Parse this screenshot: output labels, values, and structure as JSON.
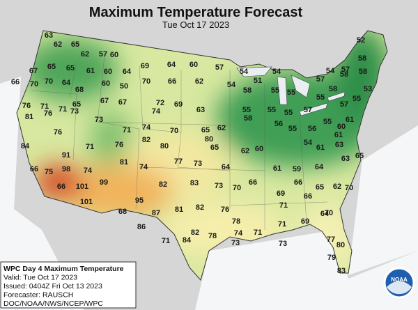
{
  "header": {
    "title": "Maximum Temperature Forecast",
    "subtitle": "Tue Oct 17 2023"
  },
  "labels": [
    63,
    62,
    65,
    62,
    57,
    60,
    52,
    67,
    65,
    65,
    61,
    60,
    64,
    69,
    64,
    60,
    57,
    54,
    54,
    51,
    57,
    54,
    57,
    58,
    58,
    58,
    66,
    70,
    70,
    64,
    68,
    60,
    50,
    70,
    66,
    62,
    54,
    58,
    55,
    55,
    55,
    58,
    55,
    53,
    76,
    71,
    71,
    65,
    67,
    67,
    72,
    69,
    63,
    55,
    55,
    55,
    57,
    57,
    81,
    76,
    73,
    73,
    71,
    74,
    74,
    70,
    65,
    62,
    58,
    56,
    55,
    56,
    55,
    60,
    61,
    84,
    76,
    71,
    76,
    82,
    80,
    65,
    62,
    60,
    61,
    54,
    61,
    63,
    91,
    98,
    74,
    81,
    74,
    77,
    73,
    64,
    66,
    61,
    59,
    64,
    63,
    66,
    75,
    101,
    99,
    82,
    83,
    73,
    70,
    69,
    66,
    65,
    62,
    65,
    66,
    101,
    95,
    87,
    81,
    82,
    76,
    71,
    66,
    64,
    70,
    68,
    86,
    82,
    78,
    74,
    71,
    71,
    69,
    70,
    71,
    84,
    78,
    73,
    73,
    77,
    80,
    79,
    83,
    80
  ],
  "info": {
    "lines": [
      "WPC Day 4 Maximum Temperature",
      "Valid: Tue Oct 17 2023",
      "Issued: 0404Z Fri Oct 13 2023",
      "Forecaster: RAUSCH",
      "DOC/NOAA/NWS/NCEP/WPC"
    ]
  },
  "logo": "NOAA"
}
